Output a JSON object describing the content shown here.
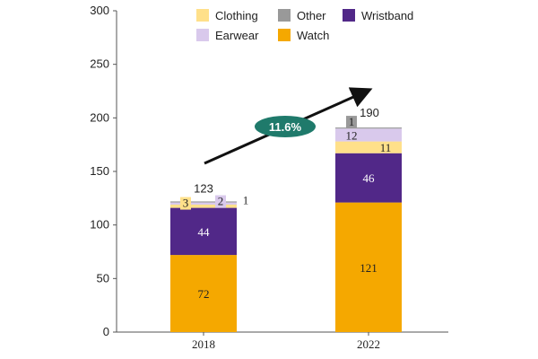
{
  "chart_data": {
    "type": "bar",
    "stacked": true,
    "categories": [
      "2018",
      "2022"
    ],
    "series": [
      {
        "name": "Watch",
        "values": [
          72,
          121
        ],
        "color": "#F5A800",
        "label_color": "#222222"
      },
      {
        "name": "Wristband",
        "values": [
          44,
          46
        ],
        "color": "#512888",
        "label_color": "#ffffff"
      },
      {
        "name": "Clothing",
        "values": [
          3,
          11
        ],
        "color": "#FFE08A",
        "label_color": "#222222"
      },
      {
        "name": "Earwear",
        "values": [
          2,
          12
        ],
        "color": "#D9C9EC",
        "label_color": "#222222"
      },
      {
        "name": "Other",
        "values": [
          1,
          1
        ],
        "color": "#999999",
        "label_color": "#222222"
      }
    ],
    "totals": [
      "123",
      "190"
    ],
    "segment_labels": [
      [
        "72",
        "44",
        "3",
        "2",
        "1"
      ],
      [
        "121",
        "46",
        "11",
        "12",
        "1"
      ]
    ],
    "ylim": [
      0,
      300
    ],
    "yticks": [
      "0",
      "50",
      "100",
      "150",
      "200",
      "250",
      "300"
    ],
    "ytick_values": [
      0,
      50,
      100,
      150,
      200,
      250,
      300
    ],
    "legend": [
      "Clothing",
      "Other",
      "Wristband",
      "Earwear",
      "Watch"
    ],
    "legend_position": "top",
    "annotation": {
      "text": "11.6%",
      "color": "#1F7A6B"
    },
    "title": "",
    "xlabel": "",
    "ylabel": ""
  }
}
